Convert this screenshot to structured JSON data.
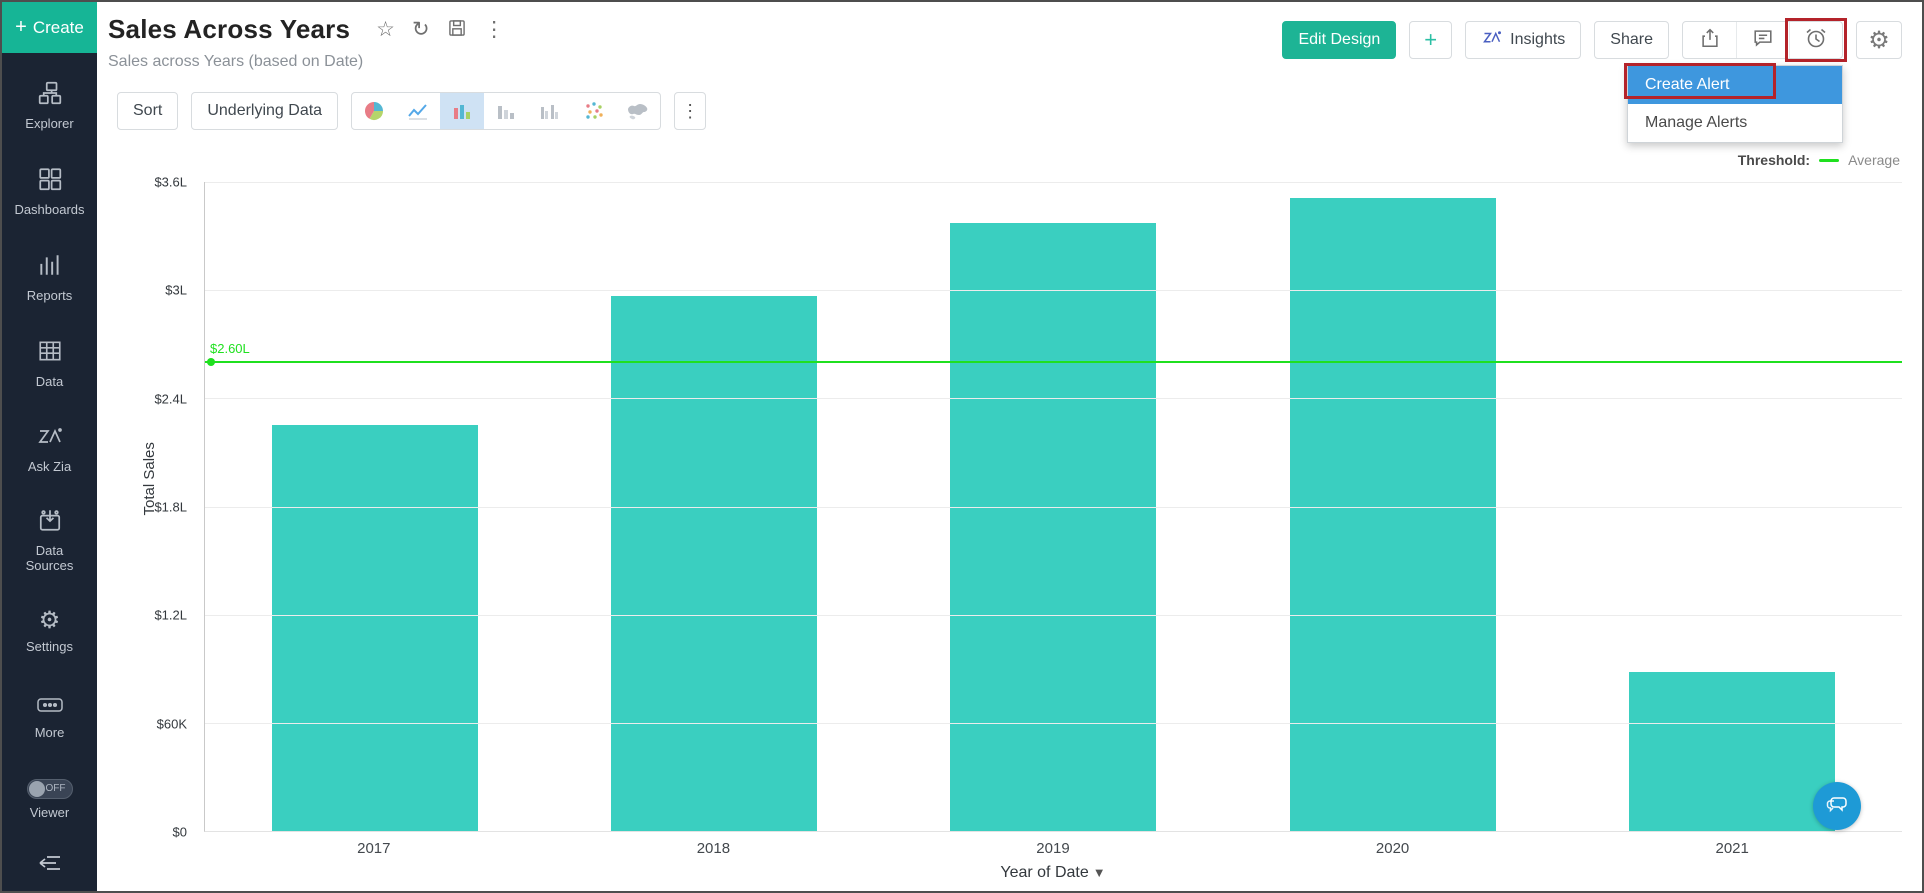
{
  "sidebar": {
    "create_label": "Create",
    "items": [
      {
        "label": "Explorer",
        "icon": "explorer-icon"
      },
      {
        "label": "Dashboards",
        "icon": "dashboards-icon"
      },
      {
        "label": "Reports",
        "icon": "reports-icon"
      },
      {
        "label": "Data",
        "icon": "data-icon"
      },
      {
        "label": "Ask Zia",
        "icon": "zia-icon"
      },
      {
        "label": "Data Sources",
        "icon": "data-sources-icon"
      },
      {
        "label": "Settings",
        "icon": "gear-icon"
      },
      {
        "label": "More",
        "icon": "more-icon"
      }
    ],
    "viewer": {
      "label": "Viewer",
      "toggle_state": "OFF"
    }
  },
  "header": {
    "title": "Sales Across Years",
    "subtitle": "Sales across Years (based on Date)",
    "title_icons": [
      "favorite-star-icon",
      "refresh-icon",
      "save-icon",
      "kebab-menu-icon"
    ],
    "buttons": {
      "edit_design": "Edit Design",
      "plus": "+",
      "insights": "Insights",
      "share": "Share"
    },
    "right_icons": [
      "export-icon",
      "comment-icon",
      "alert-clock-icon",
      "gear-icon"
    ],
    "alert_menu": {
      "items": [
        {
          "label": "Create Alert",
          "selected": true
        },
        {
          "label": "Manage Alerts",
          "selected": false
        }
      ]
    }
  },
  "toolbar": {
    "sort": "Sort",
    "underlying_data": "Underlying Data",
    "chart_types": [
      "pie",
      "line",
      "bar",
      "stacked-bar",
      "grouped-bar",
      "scatter",
      "map"
    ],
    "selected_chart_type": "bar",
    "kebab": "⋮"
  },
  "chart_data": {
    "type": "bar",
    "categories": [
      "2017",
      "2018",
      "2019",
      "2020",
      "2021"
    ],
    "values": [
      2.25,
      2.97,
      3.37,
      3.51,
      0.88
    ],
    "values_unit": "lakh USD ($L)",
    "xlabel": "Year of Date",
    "ylabel": "Total Sales",
    "ylim": [
      0,
      3.6
    ],
    "yticks": [
      {
        "value": 0,
        "label": "$0"
      },
      {
        "value": 0.6,
        "label": "$60K"
      },
      {
        "value": 1.2,
        "label": "$1.2L"
      },
      {
        "value": 1.8,
        "label": "$1.8L"
      },
      {
        "value": 2.4,
        "label": "$2.4L"
      },
      {
        "value": 3.0,
        "label": "$3L"
      },
      {
        "value": 3.6,
        "label": "$3.6L"
      }
    ],
    "grid": true,
    "legend_position": "top-right",
    "legend": {
      "prefix": "Threshold:",
      "series": "Average"
    },
    "threshold": {
      "value": 2.6,
      "label": "$2.60L"
    }
  },
  "colors": {
    "bar": "#3acfc0",
    "threshold_green": "#1fe01f",
    "sidebar_bg": "#1b2433",
    "create_green": "#16b596",
    "edit_design_green": "#1db495",
    "dropdown_selected_blue": "#3e97de",
    "annotation_red": "#b4232a",
    "fab_blue": "#1e9ad6"
  },
  "fab": {
    "name": "ask-zia-chat"
  }
}
